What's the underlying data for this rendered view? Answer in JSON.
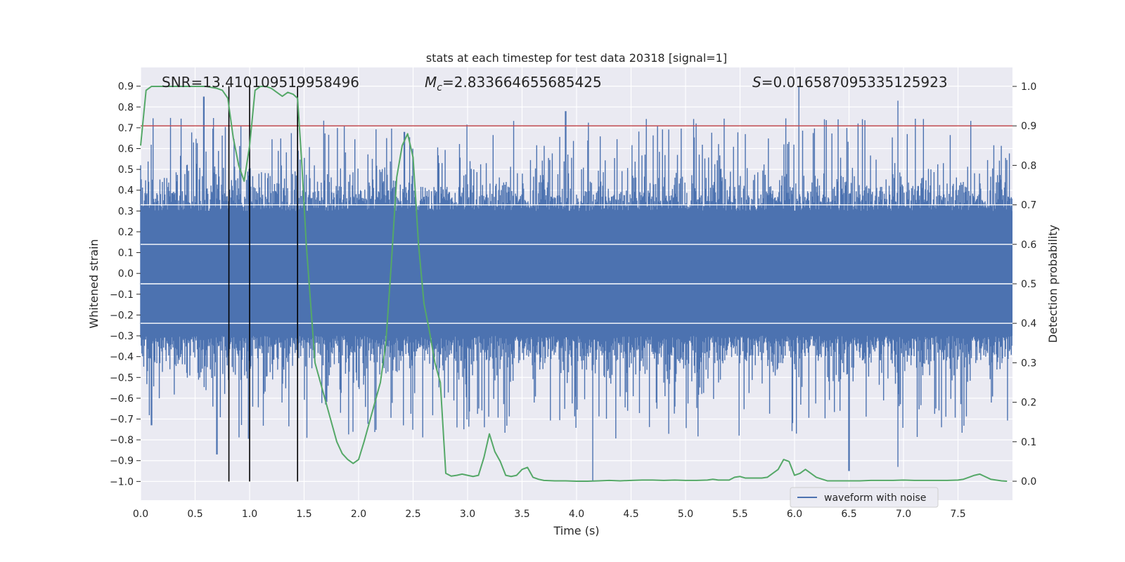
{
  "chart_data": {
    "type": "line",
    "title": "stats at each timestep for test data 20318 [signal=1]",
    "xlabel": "Time (s)",
    "ylabel": "Whitened strain",
    "ylabel_right": "Detection probability",
    "xlim": [
      0.0,
      8.0
    ],
    "ylim": [
      -1.09,
      0.99
    ],
    "ylim_right": [
      -0.048,
      1.048
    ],
    "x_ticks": [
      "0.0",
      "0.5",
      "1.0",
      "1.5",
      "2.0",
      "2.5",
      "3.0",
      "3.5",
      "4.0",
      "4.5",
      "5.0",
      "5.5",
      "6.0",
      "6.5",
      "7.0",
      "7.5"
    ],
    "y_ticks": [
      "0.9",
      "0.8",
      "0.7",
      "0.6",
      "0.5",
      "0.4",
      "0.3",
      "0.2",
      "0.1",
      "0.0",
      "-0.1",
      "-0.2",
      "-0.3",
      "-0.4",
      "-0.5",
      "-0.6",
      "-0.7",
      "-0.8",
      "-0.9",
      "-1.0"
    ],
    "y_right_ticks": [
      "1.0",
      "0.9",
      "0.8",
      "0.7",
      "0.6",
      "0.5",
      "0.4",
      "0.3",
      "0.2",
      "0.1",
      "0.0"
    ],
    "annotations": {
      "snr": "SNR=13.410109519958496",
      "mc_symbol": "M",
      "mc_sub": "c",
      "mc_value": "=2.833664655685425",
      "s_symbol": "S",
      "s_value": "=0.016587095335125923"
    },
    "threshold_line": {
      "probability": 0.9,
      "color": "#c44e52"
    },
    "vertical_lines": [
      0.81,
      1.0,
      1.44
    ],
    "waveform": {
      "name": "waveform with noise",
      "color": "#4c72b0",
      "samples": 1400,
      "core_envelope": [
        -0.35,
        0.35
      ],
      "notable_peaks": [
        {
          "t": 0.58,
          "v": 0.85
        },
        {
          "t": 6.04,
          "v": 0.9
        },
        {
          "t": 6.95,
          "v": 0.83
        },
        {
          "t": 3.9,
          "v": 0.78
        },
        {
          "t": 4.15,
          "v": -1.0
        },
        {
          "t": 0.7,
          "v": -0.87
        },
        {
          "t": 6.5,
          "v": -0.95
        },
        {
          "t": 6.95,
          "v": -0.93
        },
        {
          "t": 2.42,
          "v": 0.68
        },
        {
          "t": 0.1,
          "v": -0.73
        },
        {
          "t": 1.7,
          "v": -0.63
        }
      ]
    },
    "series": [
      {
        "name": "detection probability",
        "color": "#55a868",
        "axis": "right",
        "x": [
          0.0,
          0.05,
          0.1,
          0.2,
          0.3,
          0.4,
          0.5,
          0.6,
          0.7,
          0.75,
          0.8,
          0.85,
          0.9,
          0.95,
          1.0,
          1.05,
          1.1,
          1.15,
          1.2,
          1.25,
          1.3,
          1.35,
          1.4,
          1.44,
          1.48,
          1.52,
          1.56,
          1.6,
          1.65,
          1.7,
          1.75,
          1.8,
          1.85,
          1.9,
          1.95,
          2.0,
          2.05,
          2.1,
          2.15,
          2.2,
          2.25,
          2.3,
          2.35,
          2.4,
          2.45,
          2.5,
          2.55,
          2.6,
          2.65,
          2.7,
          2.75,
          2.8,
          2.85,
          2.9,
          2.95,
          3.0,
          3.05,
          3.1,
          3.15,
          3.2,
          3.25,
          3.3,
          3.35,
          3.4,
          3.45,
          3.5,
          3.55,
          3.6,
          3.65,
          3.7,
          3.8,
          3.9,
          4.0,
          4.1,
          4.2,
          4.3,
          4.4,
          4.5,
          4.6,
          4.7,
          4.8,
          4.9,
          5.0,
          5.1,
          5.2,
          5.25,
          5.3,
          5.35,
          5.4,
          5.45,
          5.5,
          5.55,
          5.6,
          5.7,
          5.75,
          5.8,
          5.85,
          5.9,
          5.95,
          6.0,
          6.05,
          6.1,
          6.2,
          6.3,
          6.4,
          6.5,
          6.6,
          6.7,
          6.8,
          6.9,
          7.0,
          7.1,
          7.2,
          7.3,
          7.4,
          7.5,
          7.55,
          7.6,
          7.65,
          7.7,
          7.8,
          7.9,
          7.95
        ],
        "values": [
          0.85,
          0.99,
          1.0,
          1.0,
          1.0,
          1.0,
          1.0,
          1.0,
          0.995,
          0.99,
          0.97,
          0.87,
          0.8,
          0.76,
          0.85,
          0.99,
          1.0,
          1.0,
          0.995,
          0.985,
          0.975,
          0.985,
          0.98,
          0.97,
          0.8,
          0.6,
          0.45,
          0.3,
          0.25,
          0.2,
          0.15,
          0.1,
          0.07,
          0.055,
          0.045,
          0.055,
          0.1,
          0.15,
          0.2,
          0.25,
          0.35,
          0.55,
          0.77,
          0.85,
          0.88,
          0.82,
          0.6,
          0.45,
          0.38,
          0.3,
          0.25,
          0.02,
          0.013,
          0.015,
          0.018,
          0.015,
          0.012,
          0.015,
          0.06,
          0.12,
          0.075,
          0.05,
          0.015,
          0.012,
          0.015,
          0.03,
          0.035,
          0.01,
          0.005,
          0.002,
          0.001,
          0.001,
          0.0,
          0.0,
          0.001,
          0.002,
          0.001,
          0.002,
          0.003,
          0.003,
          0.002,
          0.003,
          0.002,
          0.002,
          0.003,
          0.005,
          0.003,
          0.003,
          0.003,
          0.01,
          0.012,
          0.008,
          0.008,
          0.008,
          0.01,
          0.02,
          0.03,
          0.055,
          0.05,
          0.015,
          0.02,
          0.03,
          0.01,
          0.001,
          0.001,
          0.001,
          0.001,
          0.002,
          0.002,
          0.002,
          0.003,
          0.002,
          0.002,
          0.002,
          0.002,
          0.003,
          0.005,
          0.01,
          0.015,
          0.018,
          0.005,
          0.001,
          0.0
        ]
      }
    ],
    "legend": {
      "position": "lower-right",
      "entries": [
        "waveform with noise"
      ]
    },
    "grid": true
  }
}
